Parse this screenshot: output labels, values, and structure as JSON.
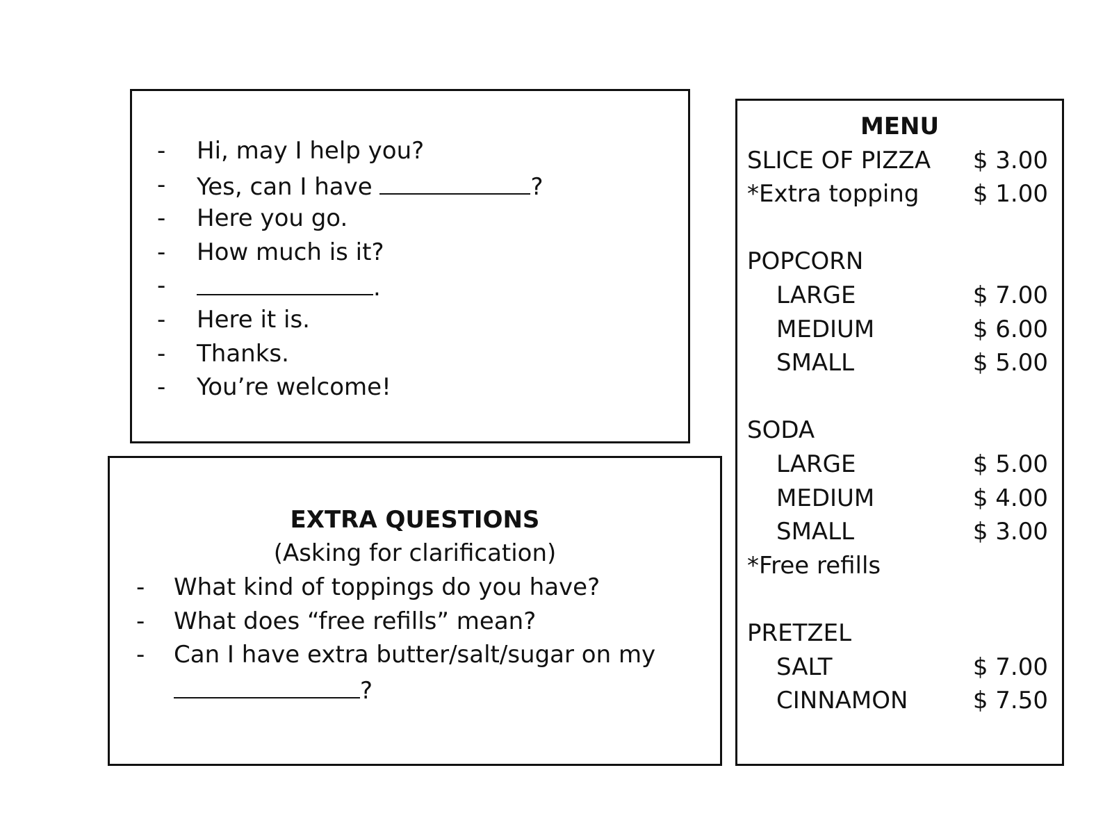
{
  "dialog": {
    "lines": [
      {
        "text": "Hi, may I help you?"
      },
      {
        "before": "Yes, can I have ",
        "after": "?"
      },
      {
        "text": "Here you go."
      },
      {
        "text": "How much is it?"
      },
      {
        "before": "",
        "after": "."
      },
      {
        "text": "Here it is."
      },
      {
        "text": "Thanks."
      },
      {
        "text": "You’re welcome!"
      }
    ]
  },
  "extra": {
    "title": "EXTRA QUESTIONS",
    "subtitle": "(Asking for clarification)",
    "questions": [
      "What kind of toppings do you have?",
      "What does “free refills” mean?",
      "Can I have extra butter/salt/sugar on my"
    ],
    "last_suffix": "?"
  },
  "menu": {
    "title": "MENU",
    "rows": [
      {
        "name": "SLICE OF PIZZA",
        "price": "$ 3.00"
      },
      {
        "name": "*Extra topping",
        "price": "$ 1.00"
      },
      {},
      {
        "name": "POPCORN"
      },
      {
        "name": "LARGE",
        "price": "$ 7.00",
        "indent": true
      },
      {
        "name": "MEDIUM",
        "price": "$ 6.00",
        "indent": true
      },
      {
        "name": "SMALL",
        "price": "$ 5.00",
        "indent": true
      },
      {},
      {
        "name": "SODA"
      },
      {
        "name": "LARGE",
        "price": "$ 5.00",
        "indent": true
      },
      {
        "name": "MEDIUM",
        "price": "$ 4.00",
        "indent": true
      },
      {
        "name": "SMALL",
        "price": "$ 3.00",
        "indent": true
      },
      {
        "name": "*Free refills"
      },
      {},
      {
        "name": "PRETZEL"
      },
      {
        "name": "SALT",
        "price": "$ 7.00",
        "indent": true
      },
      {
        "name": "CINNAMON",
        "price": "$ 7.50",
        "indent": true
      }
    ]
  }
}
